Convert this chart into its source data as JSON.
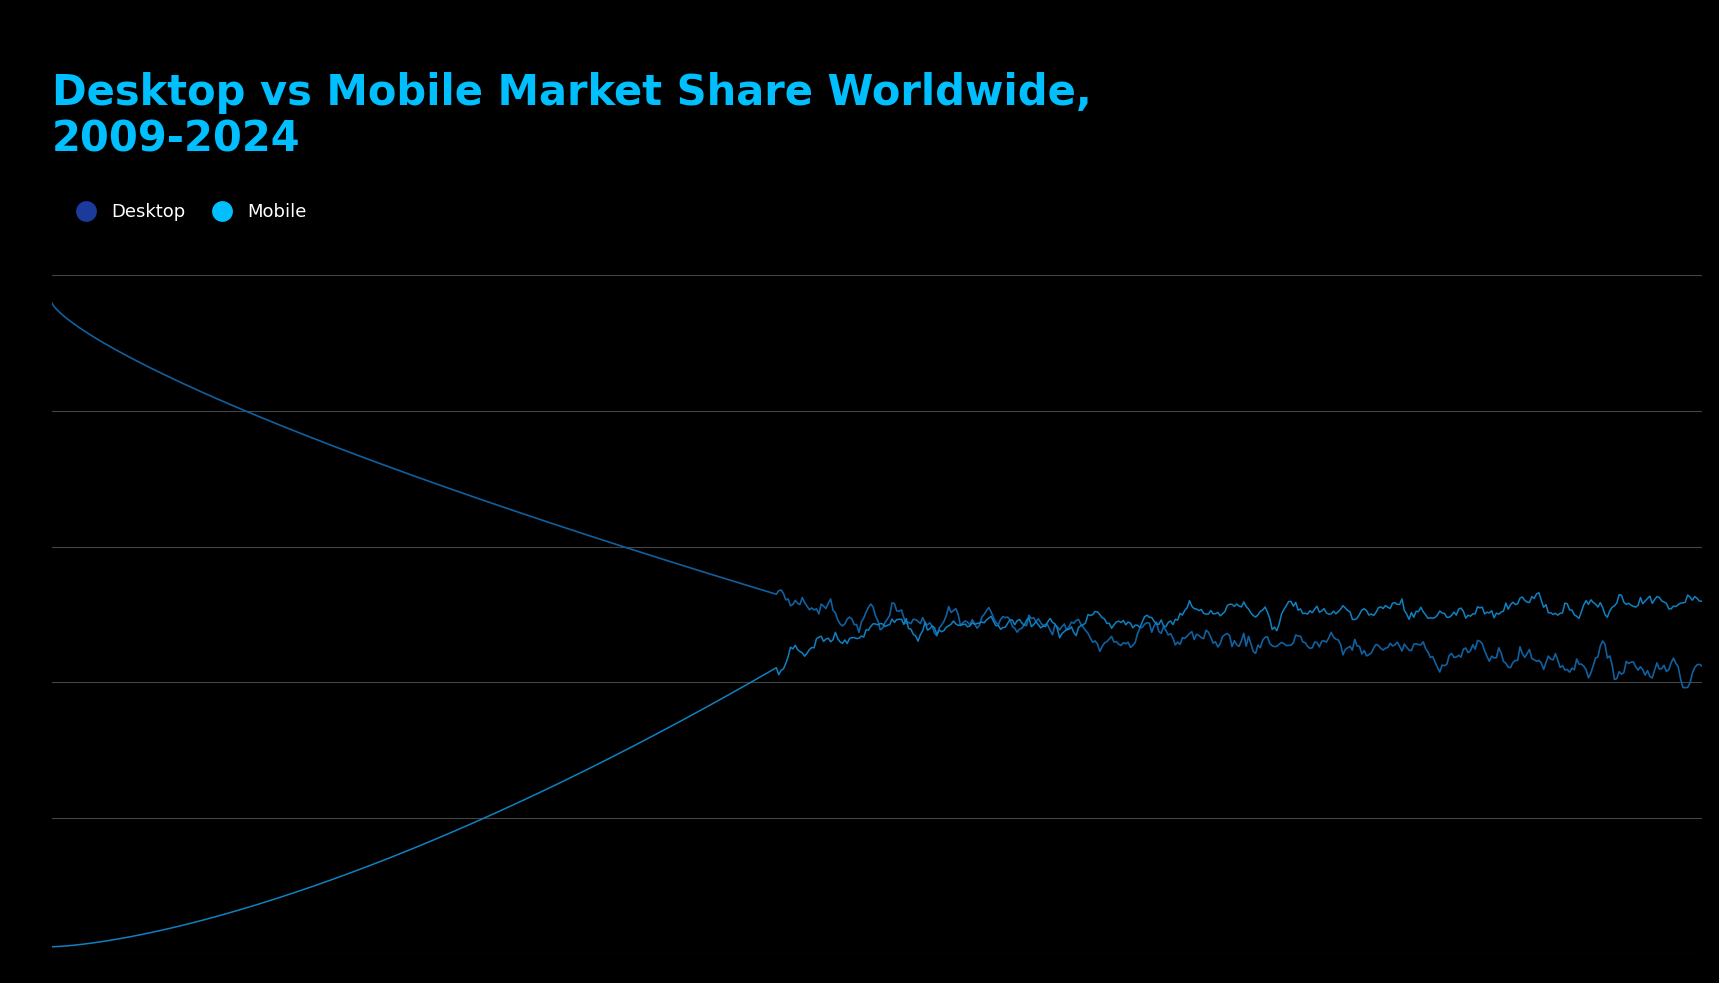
{
  "title_line1": "Desktop vs Mobile Market Share Worldwide,",
  "title_line2": "2009-2024",
  "title_color": "#00BFFF",
  "background_color": "#000000",
  "line_color_desktop": "#1060A0",
  "line_color_mobile": "#1080C0",
  "legend_dot_desktop": "#1a3a9c",
  "legend_dot_mobile": "#00BFFF",
  "grid_color": "#444444",
  "ylim": [
    0,
    100
  ],
  "xlim": [
    0,
    1
  ],
  "figsize": [
    17.19,
    9.83
  ],
  "dpi": 100,
  "title_fontsize": 30
}
